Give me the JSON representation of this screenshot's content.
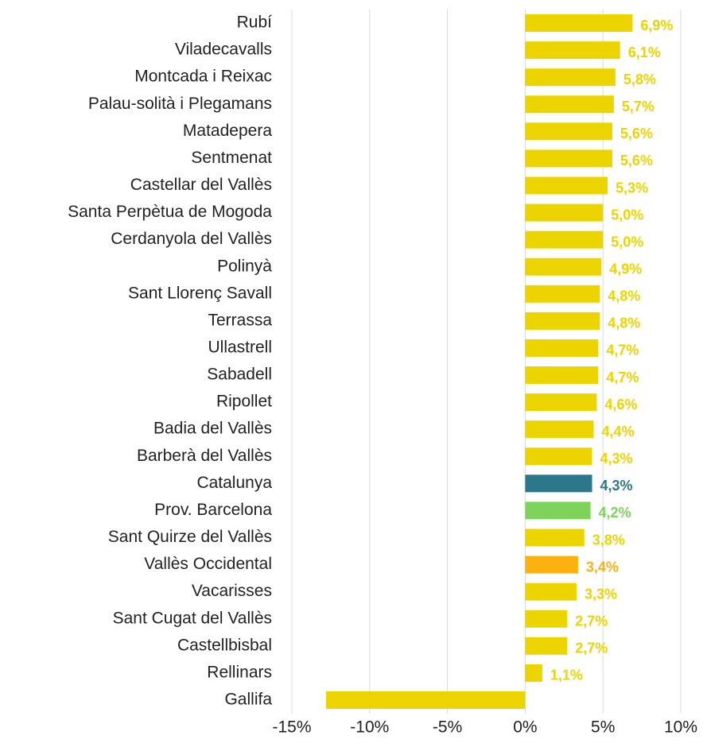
{
  "chart_data": {
    "type": "barh",
    "categories": [
      "Rubí",
      "Viladecavalls",
      "Montcada i Reixac",
      "Palau-solità i Plegamans",
      "Matadepera",
      "Sentmenat",
      "Castellar del Vallès",
      "Santa Perpètua de Mogoda",
      "Cerdanyola del Vallès",
      "Polinyà",
      "Sant Llorenç Savall",
      "Terrassa",
      "Ullastrell",
      "Sabadell",
      "Ripollet",
      "Badia del Vallès",
      "Barberà del Vallès",
      "Catalunya",
      "Prov. Barcelona",
      "Sant Quirze del Vallès",
      "Vallès Occidental",
      "Vacarisses",
      "Sant Cugat del Vallès",
      "Castellbisbal",
      "Rellinars",
      "Gallifa"
    ],
    "values": [
      6.9,
      6.1,
      5.8,
      5.7,
      5.6,
      5.6,
      5.3,
      5.0,
      5.0,
      4.9,
      4.8,
      4.8,
      4.7,
      4.7,
      4.6,
      4.4,
      4.3,
      4.3,
      4.2,
      3.8,
      3.4,
      3.3,
      2.7,
      2.7,
      1.1,
      -12.8
    ],
    "value_labels": [
      "6,9%",
      "6,1%",
      "5,8%",
      "5,7%",
      "5,6%",
      "5,6%",
      "5,3%",
      "5,0%",
      "5,0%",
      "4,9%",
      "4,8%",
      "4,8%",
      "4,7%",
      "4,7%",
      "4,6%",
      "4,4%",
      "4,3%",
      "4,3%",
      "4,2%",
      "3,8%",
      "3,4%",
      "3,3%",
      "2,7%",
      "2,7%",
      "1,1%",
      null
    ],
    "colors": [
      "#ecd400",
      "#ecd400",
      "#ecd400",
      "#ecd400",
      "#ecd400",
      "#ecd400",
      "#ecd400",
      "#ecd400",
      "#ecd400",
      "#ecd400",
      "#ecd400",
      "#ecd400",
      "#ecd400",
      "#ecd400",
      "#ecd400",
      "#ecd400",
      "#ecd400",
      "#2d778a",
      "#7ed35a",
      "#ecd400",
      "#fbb211",
      "#ecd400",
      "#ecd400",
      "#ecd400",
      "#ecd400",
      "#ecd400"
    ],
    "xlim": [
      -15,
      10
    ],
    "xticks": [
      {
        "value": -15,
        "label": "-15%"
      },
      {
        "value": -10,
        "label": "-10%"
      },
      {
        "value": -5,
        "label": "-5%"
      },
      {
        "value": 0,
        "label": "0%"
      },
      {
        "value": 5,
        "label": "5%"
      },
      {
        "value": 10,
        "label": "10%"
      }
    ],
    "grid": true
  }
}
